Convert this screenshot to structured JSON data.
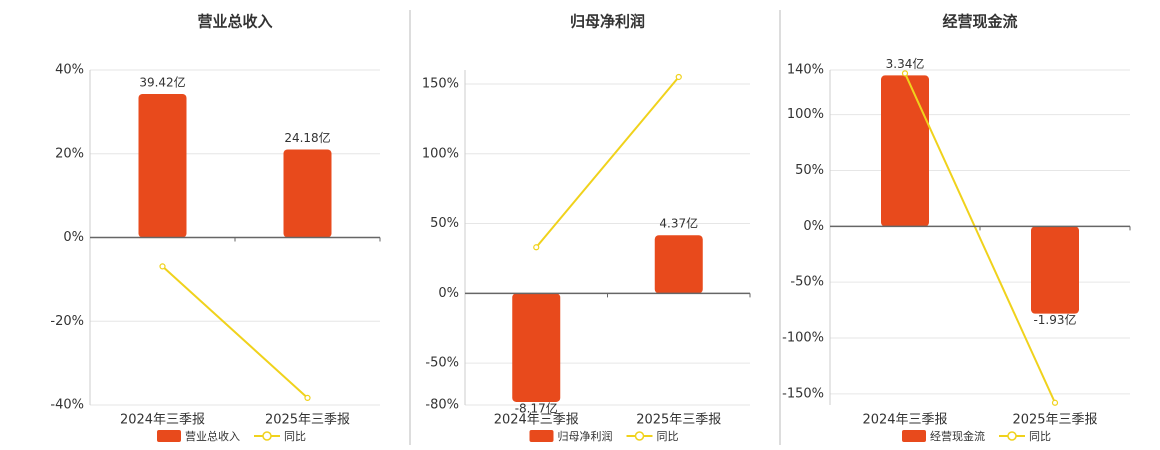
{
  "chart_data": [
    {
      "type": "bar",
      "title": "营业总收入",
      "categories": [
        "2024年三季报",
        "2025年三季报"
      ],
      "series": [
        {
          "name": "营业总收入",
          "color": "#e84a1c",
          "axis": "y2",
          "values": [
            39.42,
            24.18
          ],
          "value_labels": [
            "39.42亿",
            "24.18亿"
          ]
        },
        {
          "name": "同比",
          "color": "#f0d21c",
          "type": "line",
          "values": [
            -6.9,
            -38.3
          ]
        }
      ],
      "ylim": [
        -40,
        40
      ],
      "yticks": [
        {
          "value": -40,
          "label": "-40%"
        },
        {
          "value": -20,
          "label": "-20%"
        },
        {
          "value": 0,
          "label": "0%"
        },
        {
          "value": 20,
          "label": "20%"
        },
        {
          "value": 40,
          "label": "40%"
        }
      ],
      "y2lim": [
        -46,
        46
      ],
      "grid": true
    },
    {
      "type": "bar",
      "title": "归母净利润",
      "categories": [
        "2024年三季报",
        "2025年三季报"
      ],
      "series": [
        {
          "name": "归母净利润",
          "color": "#e84a1c",
          "axis": "y2",
          "values": [
            -8.17,
            4.37
          ],
          "value_labels": [
            "-8.17亿",
            "4.37亿"
          ]
        },
        {
          "name": "同比",
          "color": "#f0d21c",
          "type": "line",
          "values": [
            33,
            155
          ]
        }
      ],
      "ylim": [
        -80,
        160
      ],
      "yticks": [
        {
          "value": -80,
          "label": "-80%"
        },
        {
          "value": -50,
          "label": "-50%"
        },
        {
          "value": 0,
          "label": "0%"
        },
        {
          "value": 50,
          "label": "50%"
        },
        {
          "value": 100,
          "label": "100%"
        },
        {
          "value": 150,
          "label": "150%"
        }
      ],
      "y2lim": [
        -8.4,
        16.8
      ],
      "grid": true
    },
    {
      "type": "bar",
      "title": "经营现金流",
      "categories": [
        "2024年三季报",
        "2025年三季报"
      ],
      "series": [
        {
          "name": "经营现金流",
          "color": "#e84a1c",
          "axis": "y2",
          "values": [
            3.34,
            -1.93
          ],
          "value_labels": [
            "3.34亿",
            "-1.93亿"
          ]
        },
        {
          "name": "同比",
          "color": "#f0d21c",
          "type": "line",
          "values": [
            137,
            -158
          ]
        }
      ],
      "ylim": [
        -160,
        140
      ],
      "yticks": [
        {
          "value": -150,
          "label": "-150%"
        },
        {
          "value": -100,
          "label": "-100%"
        },
        {
          "value": -50,
          "label": "-50%"
        },
        {
          "value": 0,
          "label": "0%"
        },
        {
          "value": 50,
          "label": "50%"
        },
        {
          "value": 100,
          "label": "100%"
        },
        {
          "value": 140,
          "label": "140%"
        }
      ],
      "y2lim": [
        -3.95,
        3.46
      ],
      "grid": true
    }
  ]
}
